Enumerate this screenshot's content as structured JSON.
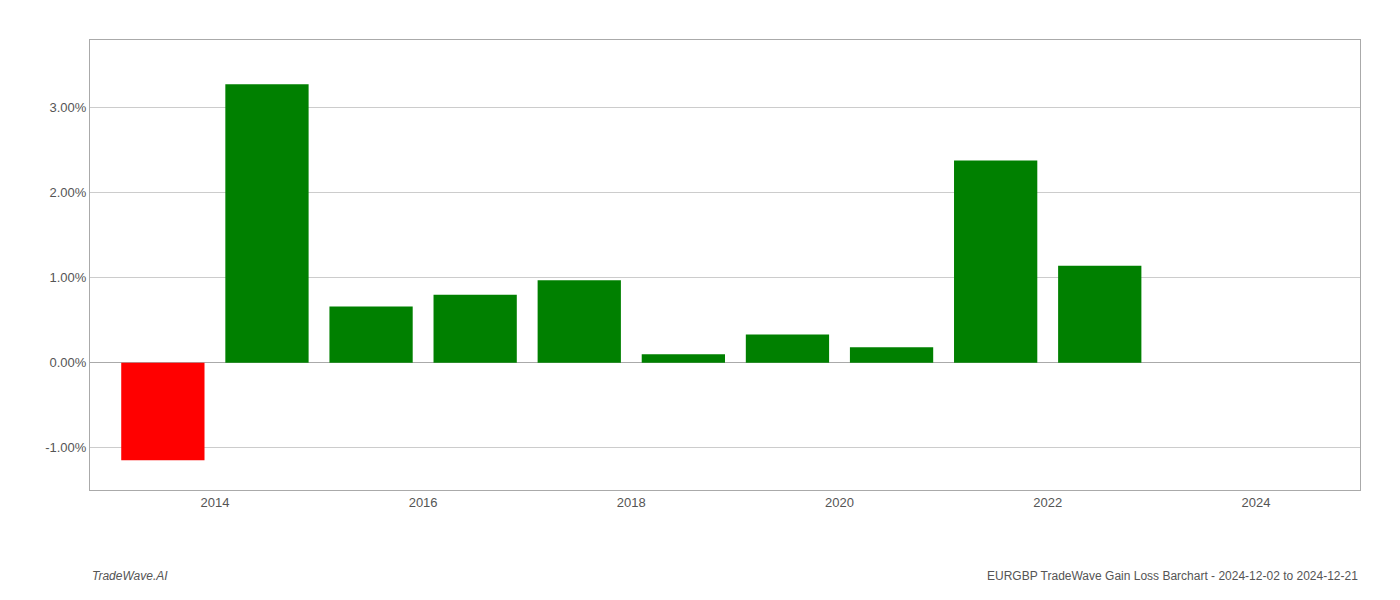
{
  "chart_data": {
    "type": "bar",
    "x": [
      2013,
      2014,
      2015,
      2016,
      2017,
      2018,
      2019,
      2020,
      2021,
      2022
    ],
    "values": [
      -1.15,
      3.28,
      0.66,
      0.8,
      0.97,
      0.1,
      0.33,
      0.18,
      2.38,
      1.14
    ],
    "colors": [
      "#ff0000",
      "#008000",
      "#008000",
      "#008000",
      "#008000",
      "#008000",
      "#008000",
      "#008000",
      "#008000",
      "#008000"
    ],
    "xlim": [
      2012.3,
      2024.5
    ],
    "xticks": [
      {
        "value": 2013.5,
        "label": "2014"
      },
      {
        "value": 2015.5,
        "label": "2016"
      },
      {
        "value": 2017.5,
        "label": "2018"
      },
      {
        "value": 2019.5,
        "label": "2020"
      },
      {
        "value": 2021.5,
        "label": "2022"
      },
      {
        "value": 2023.5,
        "label": "2024"
      }
    ],
    "ylim": [
      -1.5,
      3.8
    ],
    "yticks": [
      {
        "value": -1.0,
        "label": "-1.00%"
      },
      {
        "value": 0.0,
        "label": "0.00%"
      },
      {
        "value": 1.0,
        "label": "1.00%"
      },
      {
        "value": 2.0,
        "label": "2.00%"
      },
      {
        "value": 3.0,
        "label": "3.00%"
      }
    ],
    "grid": true,
    "annotations": [
      "TradeWave.AI",
      "EURGBP TradeWave Gain Loss Barchart - 2024-12-02 to 2024-12-21"
    ]
  }
}
